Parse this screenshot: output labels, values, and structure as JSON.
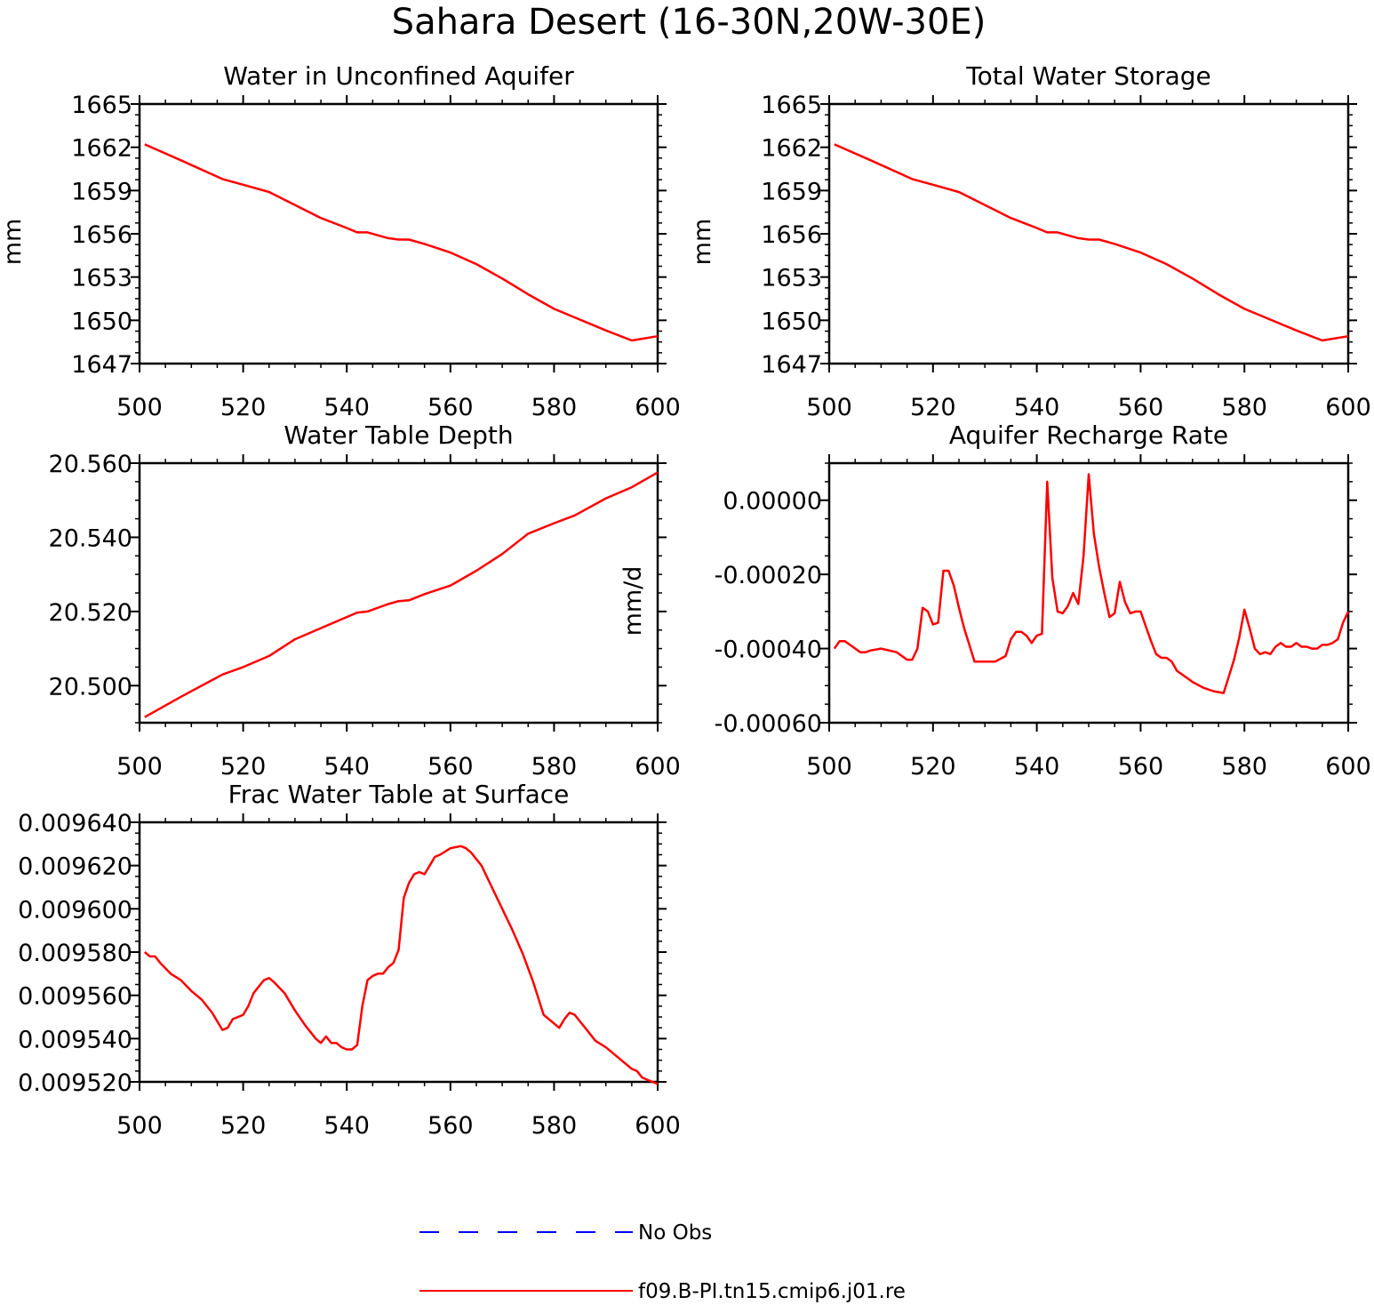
{
  "figure": {
    "title": "Sahara Desert (16-30N,20W-30E)"
  },
  "legend": [
    {
      "label": "No Obs",
      "color": "#0000ff",
      "dash": true
    },
    {
      "label": "f09.B-PI.tn15.cmip6.j01.re",
      "color": "#ff0000",
      "dash": false
    }
  ],
  "chart_data": [
    {
      "type": "line",
      "title": "Water in Unconfined Aquifer",
      "ylabel": "mm",
      "xlim": [
        500,
        600
      ],
      "ylim": [
        1647,
        1665
      ],
      "xticks": [
        500,
        520,
        540,
        560,
        580,
        600
      ],
      "xtick_labels": [
        "500",
        "520",
        "540",
        "560",
        "580",
        "600"
      ],
      "yticks": [
        1647,
        1650,
        1653,
        1656,
        1659,
        1662,
        1665
      ],
      "ytick_labels": [
        "1647",
        "1650",
        "1653",
        "1656",
        "1659",
        "1662",
        "1665"
      ],
      "series": [
        {
          "color": "#ff0000",
          "x": [
            501,
            508,
            516,
            520,
            525,
            530,
            535,
            540,
            542,
            544,
            548,
            550,
            552,
            555,
            560,
            565,
            570,
            575,
            580,
            584,
            590,
            595,
            600
          ],
          "y": [
            1662.2,
            1661.1,
            1659.8,
            1659.4,
            1658.9,
            1658.0,
            1657.1,
            1656.4,
            1656.1,
            1656.1,
            1655.7,
            1655.6,
            1655.6,
            1655.3,
            1654.7,
            1653.9,
            1652.9,
            1651.8,
            1650.8,
            1650.2,
            1649.3,
            1648.6,
            1648.9
          ]
        }
      ]
    },
    {
      "type": "line",
      "title": "Total Water Storage",
      "ylabel": "mm",
      "xlim": [
        500,
        600
      ],
      "ylim": [
        1647,
        1665
      ],
      "xticks": [
        500,
        520,
        540,
        560,
        580,
        600
      ],
      "xtick_labels": [
        "500",
        "520",
        "540",
        "560",
        "580",
        "600"
      ],
      "yticks": [
        1647,
        1650,
        1653,
        1656,
        1659,
        1662,
        1665
      ],
      "ytick_labels": [
        "1647",
        "1650",
        "1653",
        "1656",
        "1659",
        "1662",
        "1665"
      ],
      "series": [
        {
          "color": "#ff0000",
          "x": [
            501,
            508,
            516,
            520,
            525,
            530,
            535,
            540,
            542,
            544,
            548,
            550,
            552,
            555,
            560,
            565,
            570,
            575,
            580,
            584,
            590,
            595,
            600
          ],
          "y": [
            1662.2,
            1661.1,
            1659.8,
            1659.4,
            1658.9,
            1658.0,
            1657.1,
            1656.4,
            1656.1,
            1656.1,
            1655.7,
            1655.6,
            1655.6,
            1655.3,
            1654.7,
            1653.9,
            1652.9,
            1651.8,
            1650.8,
            1650.2,
            1649.3,
            1648.6,
            1648.9
          ]
        }
      ]
    },
    {
      "type": "line",
      "title": "Water Table Depth",
      "ylabel": "",
      "xlim": [
        500,
        600
      ],
      "ylim": [
        20.49,
        20.56
      ],
      "xticks": [
        500,
        520,
        540,
        560,
        580,
        600
      ],
      "xtick_labels": [
        "500",
        "520",
        "540",
        "560",
        "580",
        "600"
      ],
      "yticks": [
        20.5,
        20.52,
        20.54,
        20.56
      ],
      "ytick_labels": [
        "20.500",
        "20.520",
        "20.540",
        "20.560"
      ],
      "series": [
        {
          "color": "#ff0000",
          "x": [
            501,
            508,
            516,
            520,
            525,
            530,
            535,
            540,
            542,
            544,
            548,
            550,
            552,
            555,
            560,
            565,
            570,
            575,
            580,
            584,
            590,
            595,
            600
          ],
          "y": [
            20.4915,
            20.497,
            20.503,
            20.505,
            20.508,
            20.5125,
            20.5155,
            20.5185,
            20.5197,
            20.52,
            20.522,
            20.5228,
            20.523,
            20.5247,
            20.527,
            20.531,
            20.5355,
            20.541,
            20.5438,
            20.5459,
            20.5505,
            20.5535,
            20.5575
          ]
        }
      ]
    },
    {
      "type": "line",
      "title": "Aquifer Recharge Rate",
      "ylabel": "mm/d",
      "xlim": [
        500,
        600
      ],
      "ylim": [
        -0.0006,
        0.0001
      ],
      "xticks": [
        500,
        520,
        540,
        560,
        580,
        600
      ],
      "xtick_labels": [
        "500",
        "520",
        "540",
        "560",
        "580",
        "600"
      ],
      "yticks": [
        -0.0006,
        -0.0004,
        -0.0002,
        0
      ],
      "ytick_labels": [
        "-0.00060",
        "-0.00040",
        "-0.00020",
        "0.00000"
      ],
      "series": [
        {
          "color": "#ff0000",
          "x": [
            501,
            502,
            503,
            504,
            506,
            507,
            508,
            510,
            513,
            515,
            516,
            517,
            518,
            519,
            520,
            521,
            522,
            523,
            524,
            525,
            526,
            527,
            528,
            530,
            532,
            534,
            535,
            536,
            537,
            538,
            539,
            540,
            541,
            542,
            543,
            544,
            545,
            546,
            547,
            548,
            549,
            550,
            551,
            552,
            553,
            554,
            555,
            556,
            557,
            558,
            559,
            560,
            561,
            562,
            563,
            564,
            565,
            566,
            567,
            568,
            569,
            570,
            572,
            574,
            576,
            577,
            578,
            579,
            580,
            581,
            582,
            583,
            584,
            585,
            586,
            587,
            588,
            589,
            590,
            591,
            592,
            593,
            594,
            595,
            596,
            597,
            598,
            599,
            600
          ],
          "y": [
            -0.0004,
            -0.00038,
            -0.00038,
            -0.00039,
            -0.00041,
            -0.00041,
            -0.000405,
            -0.0004,
            -0.00041,
            -0.00043,
            -0.00043,
            -0.0004,
            -0.00029,
            -0.0003,
            -0.000335,
            -0.00033,
            -0.00019,
            -0.00019,
            -0.00023,
            -0.00029,
            -0.000345,
            -0.00039,
            -0.000435,
            -0.000435,
            -0.000435,
            -0.00042,
            -0.000375,
            -0.000355,
            -0.000355,
            -0.000365,
            -0.000385,
            -0.000365,
            -0.00036,
            5e-05,
            -0.00021,
            -0.0003,
            -0.000305,
            -0.000285,
            -0.00025,
            -0.00028,
            -0.00015,
            7e-05,
            -9e-05,
            -0.00018,
            -0.00025,
            -0.000315,
            -0.000305,
            -0.00022,
            -0.000275,
            -0.000305,
            -0.0003,
            -0.0003,
            -0.00034,
            -0.00038,
            -0.000415,
            -0.000425,
            -0.000425,
            -0.000435,
            -0.00046,
            -0.00047,
            -0.00048,
            -0.00049,
            -0.000505,
            -0.000515,
            -0.00052,
            -0.000475,
            -0.00043,
            -0.00037,
            -0.000295,
            -0.000345,
            -0.0004,
            -0.000415,
            -0.00041,
            -0.000415,
            -0.000395,
            -0.000385,
            -0.000395,
            -0.000395,
            -0.000385,
            -0.000395,
            -0.000395,
            -0.0004,
            -0.0004,
            -0.00039,
            -0.00039,
            -0.000385,
            -0.000375,
            -0.00033,
            -0.0003
          ]
        }
      ]
    },
    {
      "type": "line",
      "title": "Frac Water Table at Surface",
      "ylabel": "",
      "xlim": [
        500,
        600
      ],
      "ylim": [
        0.00952,
        0.00964
      ],
      "xticks": [
        500,
        520,
        540,
        560,
        580,
        600
      ],
      "xtick_labels": [
        "500",
        "520",
        "540",
        "560",
        "580",
        "600"
      ],
      "yticks": [
        0.00952,
        0.00954,
        0.00956,
        0.00958,
        0.0096,
        0.00962,
        0.00964
      ],
      "ytick_labels": [
        "0.009520",
        "0.009540",
        "0.009560",
        "0.009580",
        "0.009600",
        "0.009620",
        "0.009640"
      ],
      "series": [
        {
          "color": "#ff0000",
          "x": [
            501,
            502,
            503,
            504,
            506,
            508,
            510,
            512,
            514,
            516,
            517,
            518,
            519,
            520,
            521,
            522,
            524,
            525,
            526,
            528,
            530,
            532,
            534,
            535,
            536,
            537,
            538,
            539,
            540,
            541,
            542,
            543,
            544,
            545,
            546,
            547,
            548,
            549,
            550,
            551,
            552,
            553,
            554,
            555,
            556,
            557,
            558,
            560,
            562,
            563,
            564,
            566,
            568,
            570,
            572,
            574,
            576,
            578,
            580,
            581,
            582,
            583,
            584,
            585,
            586,
            588,
            590,
            592,
            593,
            594,
            595,
            596,
            597,
            598,
            600
          ],
          "y": [
            0.00958,
            0.009578,
            0.009578,
            0.009575,
            0.00957,
            0.009567,
            0.009562,
            0.009558,
            0.009552,
            0.009544,
            0.009545,
            0.009549,
            0.00955,
            0.009551,
            0.009555,
            0.009561,
            0.009567,
            0.009568,
            0.009566,
            0.009561,
            0.009553,
            0.009546,
            0.00954,
            0.009538,
            0.009541,
            0.009538,
            0.009538,
            0.009536,
            0.009535,
            0.009535,
            0.009537,
            0.009555,
            0.009567,
            0.009569,
            0.00957,
            0.00957,
            0.009573,
            0.009575,
            0.009581,
            0.009605,
            0.009612,
            0.009616,
            0.009617,
            0.009616,
            0.00962,
            0.009624,
            0.009625,
            0.009628,
            0.009629,
            0.009628,
            0.009626,
            0.00962,
            0.00961,
            0.0096,
            0.00959,
            0.009579,
            0.009566,
            0.009551,
            0.009547,
            0.009545,
            0.009549,
            0.009552,
            0.009551,
            0.009548,
            0.009545,
            0.009539,
            0.009536,
            0.009532,
            0.00953,
            0.009528,
            0.009526,
            0.009525,
            0.009522,
            0.009521,
            0.009519
          ]
        }
      ]
    }
  ]
}
